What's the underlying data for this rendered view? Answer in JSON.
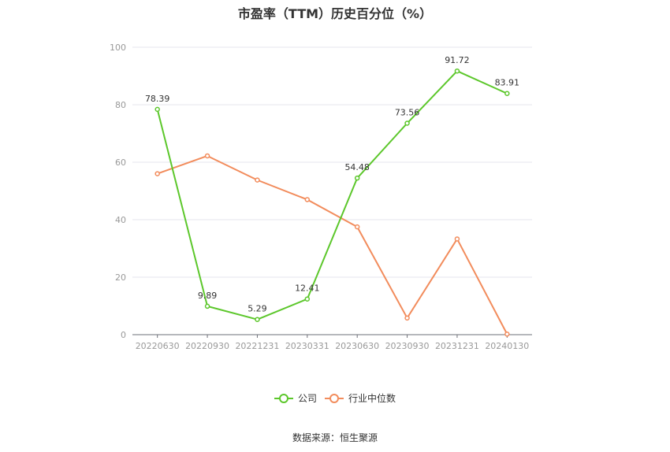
{
  "chart_data": {
    "type": "line",
    "title": "市盈率（TTM）历史百分位（%）",
    "categories": [
      "20220630",
      "20220930",
      "20221231",
      "20230331",
      "20230630",
      "20230930",
      "20231231",
      "20240130"
    ],
    "series": [
      {
        "name": "公司",
        "color": "#5cc72b",
        "values": [
          78.39,
          9.89,
          5.29,
          12.41,
          54.48,
          73.56,
          91.72,
          83.91
        ],
        "labels": [
          "78.39",
          "9.89",
          "5.29",
          "12.41",
          "54.48",
          "73.56",
          "91.72",
          "83.91"
        ]
      },
      {
        "name": "行业中位数",
        "color": "#f28c5c",
        "values": [
          56.0,
          62.2,
          53.8,
          47.0,
          37.5,
          5.8,
          33.3,
          0.2
        ]
      }
    ],
    "ylim": [
      0,
      100
    ],
    "yticks": [
      0,
      20,
      40,
      60,
      80,
      100
    ],
    "grid": true,
    "legend": "bottom-center"
  },
  "source": "数据来源：恒生聚源"
}
